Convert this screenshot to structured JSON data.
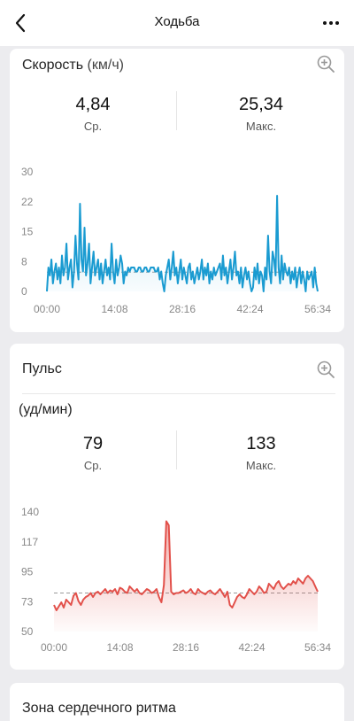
{
  "header": {
    "title": "Ходьба"
  },
  "icons": {
    "back": "chevron-left-icon",
    "more": "more-dots-icon",
    "zoom": "zoom-in-icon"
  },
  "speed": {
    "title": "Скорость",
    "unit": "(км/ч)",
    "avg_value": "4,84",
    "avg_label": "Ср.",
    "max_value": "25,34",
    "max_label": "Макс.",
    "chart_data": {
      "type": "line",
      "color": "#1a9bd1",
      "ylim": [
        0,
        30
      ],
      "y_ticks": [
        "0",
        "8",
        "15",
        "22",
        "30"
      ],
      "x_ticks": [
        "00:00",
        "14:08",
        "28:16",
        "42:24",
        "56:34"
      ],
      "avg_line": 4.84,
      "series": [
        {
          "values": [
            0,
            6,
            4,
            8,
            2,
            5,
            7,
            3,
            6,
            2,
            9,
            4,
            6,
            12,
            3,
            6,
            8,
            1,
            5,
            14,
            7,
            3,
            22,
            8,
            5,
            16,
            4,
            7,
            12,
            2,
            6,
            10,
            4,
            6,
            8,
            3,
            7,
            2,
            5,
            8,
            4,
            6,
            3,
            12,
            5,
            2,
            8,
            4,
            6,
            9,
            7,
            2,
            5,
            4,
            6,
            5,
            6,
            6,
            6,
            5,
            5,
            6,
            6,
            5,
            5,
            6,
            6,
            5,
            5,
            6,
            6,
            6,
            5,
            5,
            6,
            3,
            5,
            2,
            0,
            4,
            6,
            8,
            3,
            6,
            10,
            4,
            6,
            2,
            5,
            8,
            3,
            6,
            4,
            2,
            6,
            7,
            3,
            5,
            2,
            4,
            6,
            3,
            5,
            8,
            3,
            6,
            4,
            7,
            2,
            5,
            3,
            6,
            4,
            5,
            6,
            7,
            3,
            9,
            4,
            6,
            2,
            5,
            8,
            3,
            6,
            10,
            4,
            5,
            2,
            6,
            1,
            4,
            6,
            3,
            5,
            2,
            0,
            1,
            6,
            3,
            7,
            2,
            5,
            4,
            0,
            6,
            3,
            14,
            5,
            2,
            10,
            8,
            4,
            24,
            6,
            2,
            9,
            3,
            7,
            5,
            4,
            6,
            2,
            5,
            3,
            6,
            1,
            4,
            6,
            2,
            5,
            3,
            0,
            5,
            3,
            4,
            5,
            1,
            6,
            2,
            0
          ]
        }
      ]
    }
  },
  "pulse": {
    "title": "Пульс",
    "unit": "(уд/мин)",
    "avg_value": "79",
    "avg_label": "Ср.",
    "max_value": "133",
    "max_label": "Макс.",
    "chart_data": {
      "type": "area",
      "color": "#e2504a",
      "ylim": [
        50,
        140
      ],
      "y_ticks": [
        "50",
        "73",
        "95",
        "117",
        "140"
      ],
      "x_ticks": [
        "00:00",
        "14:08",
        "28:16",
        "42:24",
        "56:34"
      ],
      "avg_line": 79,
      "series": [
        {
          "values": [
            70,
            66,
            69,
            72,
            68,
            74,
            72,
            70,
            77,
            79,
            73,
            70,
            74,
            76,
            77,
            79,
            76,
            79,
            80,
            78,
            80,
            82,
            79,
            81,
            80,
            82,
            78,
            83,
            82,
            80,
            79,
            84,
            82,
            80,
            82,
            79,
            78,
            80,
            82,
            81,
            79,
            80,
            82,
            76,
            72,
            85,
            133,
            130,
            80,
            78,
            79,
            79,
            80,
            81,
            79,
            80,
            82,
            79,
            78,
            82,
            80,
            79,
            78,
            80,
            81,
            79,
            78,
            80,
            82,
            79,
            76,
            80,
            70,
            68,
            72,
            76,
            78,
            76,
            75,
            78,
            82,
            80,
            78,
            80,
            84,
            82,
            79,
            80,
            86,
            84,
            82,
            86,
            88,
            84,
            82,
            84,
            86,
            85,
            88,
            86,
            90,
            88,
            86,
            90,
            92,
            90,
            88,
            84,
            80
          ]
        }
      ]
    }
  },
  "zone": {
    "title": "Зона сердечного ритма"
  }
}
